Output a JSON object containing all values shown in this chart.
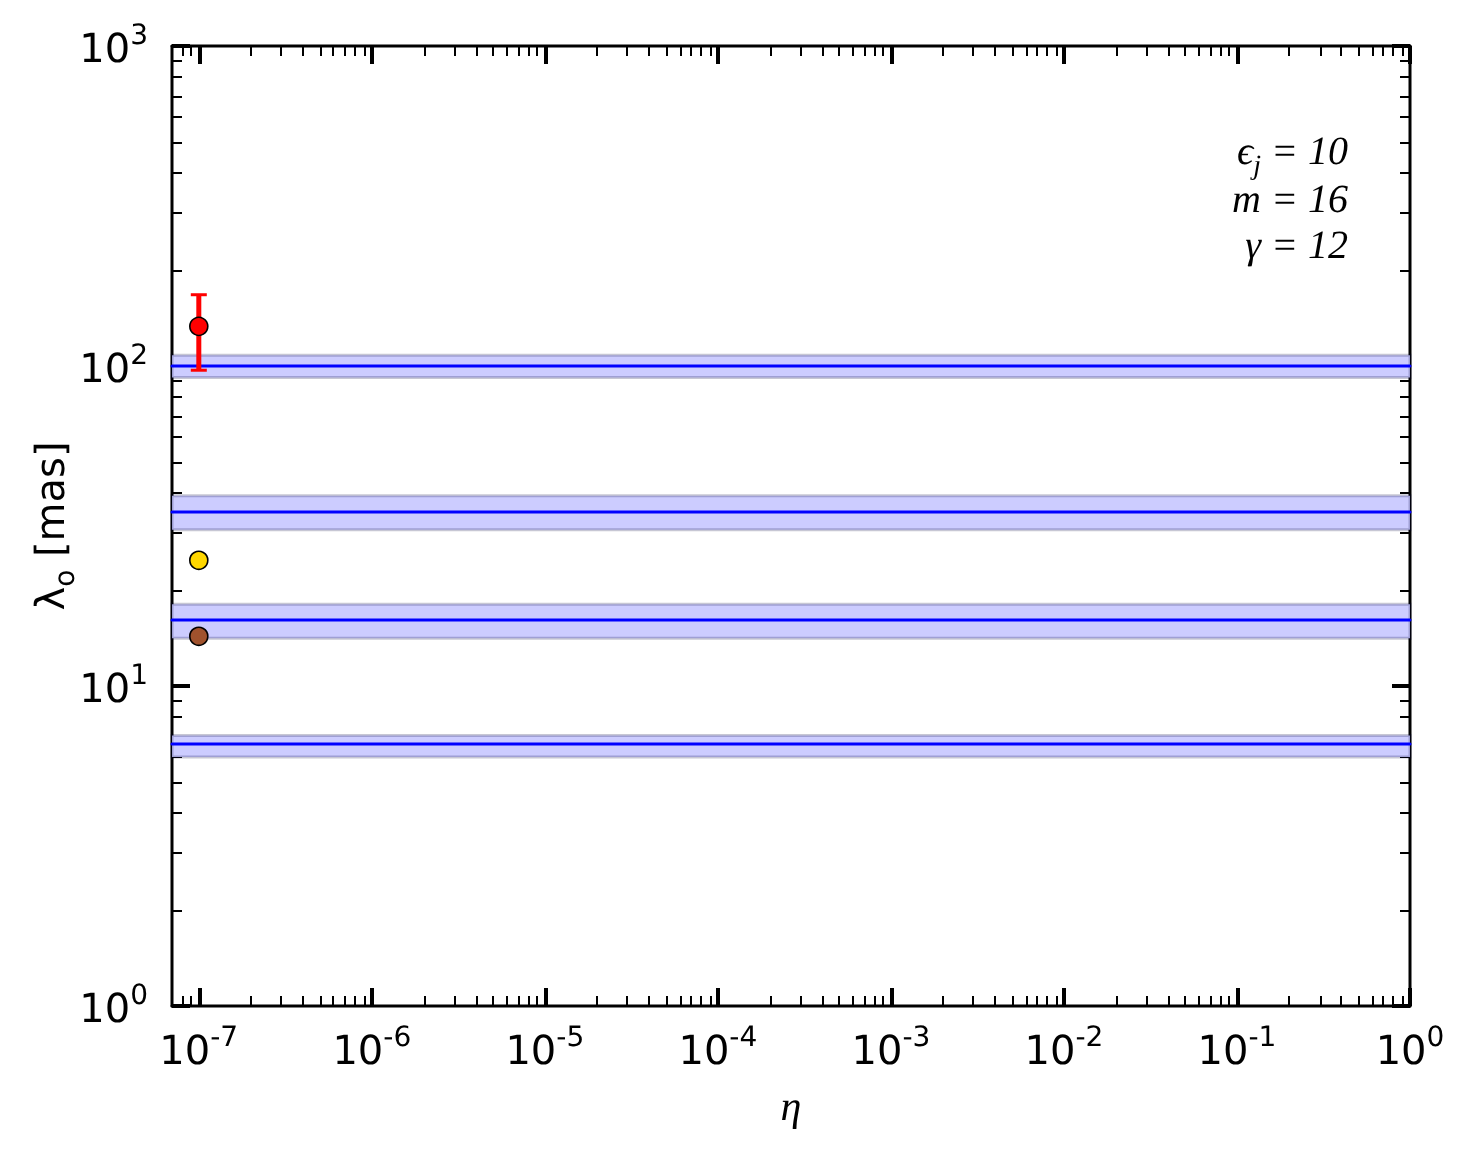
{
  "chart_data": {
    "type": "scatter",
    "xlabel": "η",
    "ylabel": "λ$_{o}$ [mas]",
    "annotations": [
      "ϵ$_{j}$ = 10",
      "m = 16",
      "γ = 12"
    ],
    "log": "xy",
    "grid": false,
    "marker": "circle",
    "xlim": [
      7e-08,
      1
    ],
    "ylim": [
      1,
      1000
    ],
    "xticks": [
      {
        "value": 8e-08,
        "label": null
      },
      {
        "value": 9e-08,
        "label": null
      },
      {
        "value": 1e-07,
        "label": "10$^{-7}$"
      },
      {
        "value": 2e-07,
        "label": null
      },
      {
        "value": 3e-07,
        "label": null
      },
      {
        "value": 4e-07,
        "label": null
      },
      {
        "value": 5e-07,
        "label": null
      },
      {
        "value": 6e-07,
        "label": null
      },
      {
        "value": 7e-07,
        "label": null
      },
      {
        "value": 8e-07,
        "label": null
      },
      {
        "value": 9e-07,
        "label": null
      },
      {
        "value": 1e-06,
        "label": "10$^{-6}$"
      },
      {
        "value": 2e-06,
        "label": null
      },
      {
        "value": 3e-06,
        "label": null
      },
      {
        "value": 4e-06,
        "label": null
      },
      {
        "value": 5e-06,
        "label": null
      },
      {
        "value": 6e-06,
        "label": null
      },
      {
        "value": 7e-06,
        "label": null
      },
      {
        "value": 8e-06,
        "label": null
      },
      {
        "value": 9e-06,
        "label": null
      },
      {
        "value": 1e-05,
        "label": "10$^{-5}$"
      },
      {
        "value": 2e-05,
        "label": null
      },
      {
        "value": 3e-05,
        "label": null
      },
      {
        "value": 4e-05,
        "label": null
      },
      {
        "value": 5e-05,
        "label": null
      },
      {
        "value": 6e-05,
        "label": null
      },
      {
        "value": 7e-05,
        "label": null
      },
      {
        "value": 8e-05,
        "label": null
      },
      {
        "value": 9e-05,
        "label": null
      },
      {
        "value": 0.0001,
        "label": "10$^{-4}$"
      },
      {
        "value": 0.0002,
        "label": null
      },
      {
        "value": 0.0003,
        "label": null
      },
      {
        "value": 0.0004,
        "label": null
      },
      {
        "value": 0.0005,
        "label": null
      },
      {
        "value": 0.0006,
        "label": null
      },
      {
        "value": 0.0007,
        "label": null
      },
      {
        "value": 0.0008,
        "label": null
      },
      {
        "value": 0.0009,
        "label": null
      },
      {
        "value": 0.001,
        "label": "10$^{-3}$"
      },
      {
        "value": 0.002,
        "label": null
      },
      {
        "value": 0.003,
        "label": null
      },
      {
        "value": 0.004,
        "label": null
      },
      {
        "value": 0.005,
        "label": null
      },
      {
        "value": 0.006,
        "label": null
      },
      {
        "value": 0.007,
        "label": null
      },
      {
        "value": 0.008,
        "label": null
      },
      {
        "value": 0.009,
        "label": null
      },
      {
        "value": 0.01,
        "label": "10$^{-2}$"
      },
      {
        "value": 0.02,
        "label": null
      },
      {
        "value": 0.03,
        "label": null
      },
      {
        "value": 0.04,
        "label": null
      },
      {
        "value": 0.05,
        "label": null
      },
      {
        "value": 0.06,
        "label": null
      },
      {
        "value": 0.07,
        "label": null
      },
      {
        "value": 0.08,
        "label": null
      },
      {
        "value": 0.09,
        "label": null
      },
      {
        "value": 0.1,
        "label": "10$^{-1}$"
      },
      {
        "value": 0.2,
        "label": null
      },
      {
        "value": 0.3,
        "label": null
      },
      {
        "value": 0.4,
        "label": null
      },
      {
        "value": 0.5,
        "label": null
      },
      {
        "value": 0.6,
        "label": null
      },
      {
        "value": 0.7,
        "label": null
      },
      {
        "value": 0.8,
        "label": null
      },
      {
        "value": 0.9,
        "label": null
      },
      {
        "value": 1,
        "label": "10$^{0}$"
      }
    ],
    "yticks": [
      {
        "value": 1,
        "label": "10$^{0}$"
      },
      {
        "value": 2,
        "label": null
      },
      {
        "value": 3,
        "label": null
      },
      {
        "value": 4,
        "label": null
      },
      {
        "value": 5,
        "label": null
      },
      {
        "value": 6,
        "label": null
      },
      {
        "value": 7,
        "label": null
      },
      {
        "value": 8,
        "label": null
      },
      {
        "value": 9,
        "label": null
      },
      {
        "value": 10,
        "label": "10$^{1}$"
      },
      {
        "value": 20,
        "label": null
      },
      {
        "value": 30,
        "label": null
      },
      {
        "value": 40,
        "label": null
      },
      {
        "value": 50,
        "label": null
      },
      {
        "value": 60,
        "label": null
      },
      {
        "value": 70,
        "label": null
      },
      {
        "value": 80,
        "label": null
      },
      {
        "value": 90,
        "label": null
      },
      {
        "value": 100,
        "label": "10$^{2}$"
      },
      {
        "value": 200,
        "label": null
      },
      {
        "value": 300,
        "label": null
      },
      {
        "value": 400,
        "label": null
      },
      {
        "value": 500,
        "label": null
      },
      {
        "value": 600,
        "label": null
      },
      {
        "value": 700,
        "label": null
      },
      {
        "value": 800,
        "label": null
      },
      {
        "value": 900,
        "label": null
      },
      {
        "value": 1000,
        "label": "10$^{3}$"
      }
    ],
    "ref_lines": [
      {
        "axis": "y",
        "value": 100,
        "color": "#0000ff"
      },
      {
        "axis": "y",
        "value": 35.3,
        "color": "#0000ff"
      },
      {
        "axis": "y",
        "value": 16.1,
        "color": "#0000ff"
      },
      {
        "axis": "y",
        "value": 6.6,
        "color": "#0000ff"
      }
    ],
    "bands": [
      {
        "axis": "y",
        "from": 92,
        "to": 108,
        "color": "#ccccff"
      },
      {
        "axis": "y",
        "from": 30.8,
        "to": 39.3,
        "color": "#ccccff"
      },
      {
        "axis": "y",
        "from": 14.1,
        "to": 18,
        "color": "#ccccff"
      },
      {
        "axis": "y",
        "from": 6,
        "to": 7,
        "color": "#ccccff"
      }
    ],
    "x": [
      1e-07
    ],
    "series": [
      {
        "color": "#ff0000",
        "values": [
          133
        ],
        "errors": [
          [
            97,
            167
          ]
        ]
      },
      {
        "color": "#ffd700",
        "values": [
          24.7
        ]
      },
      {
        "color": "#a0522d",
        "values": [
          14.3
        ]
      }
    ]
  }
}
